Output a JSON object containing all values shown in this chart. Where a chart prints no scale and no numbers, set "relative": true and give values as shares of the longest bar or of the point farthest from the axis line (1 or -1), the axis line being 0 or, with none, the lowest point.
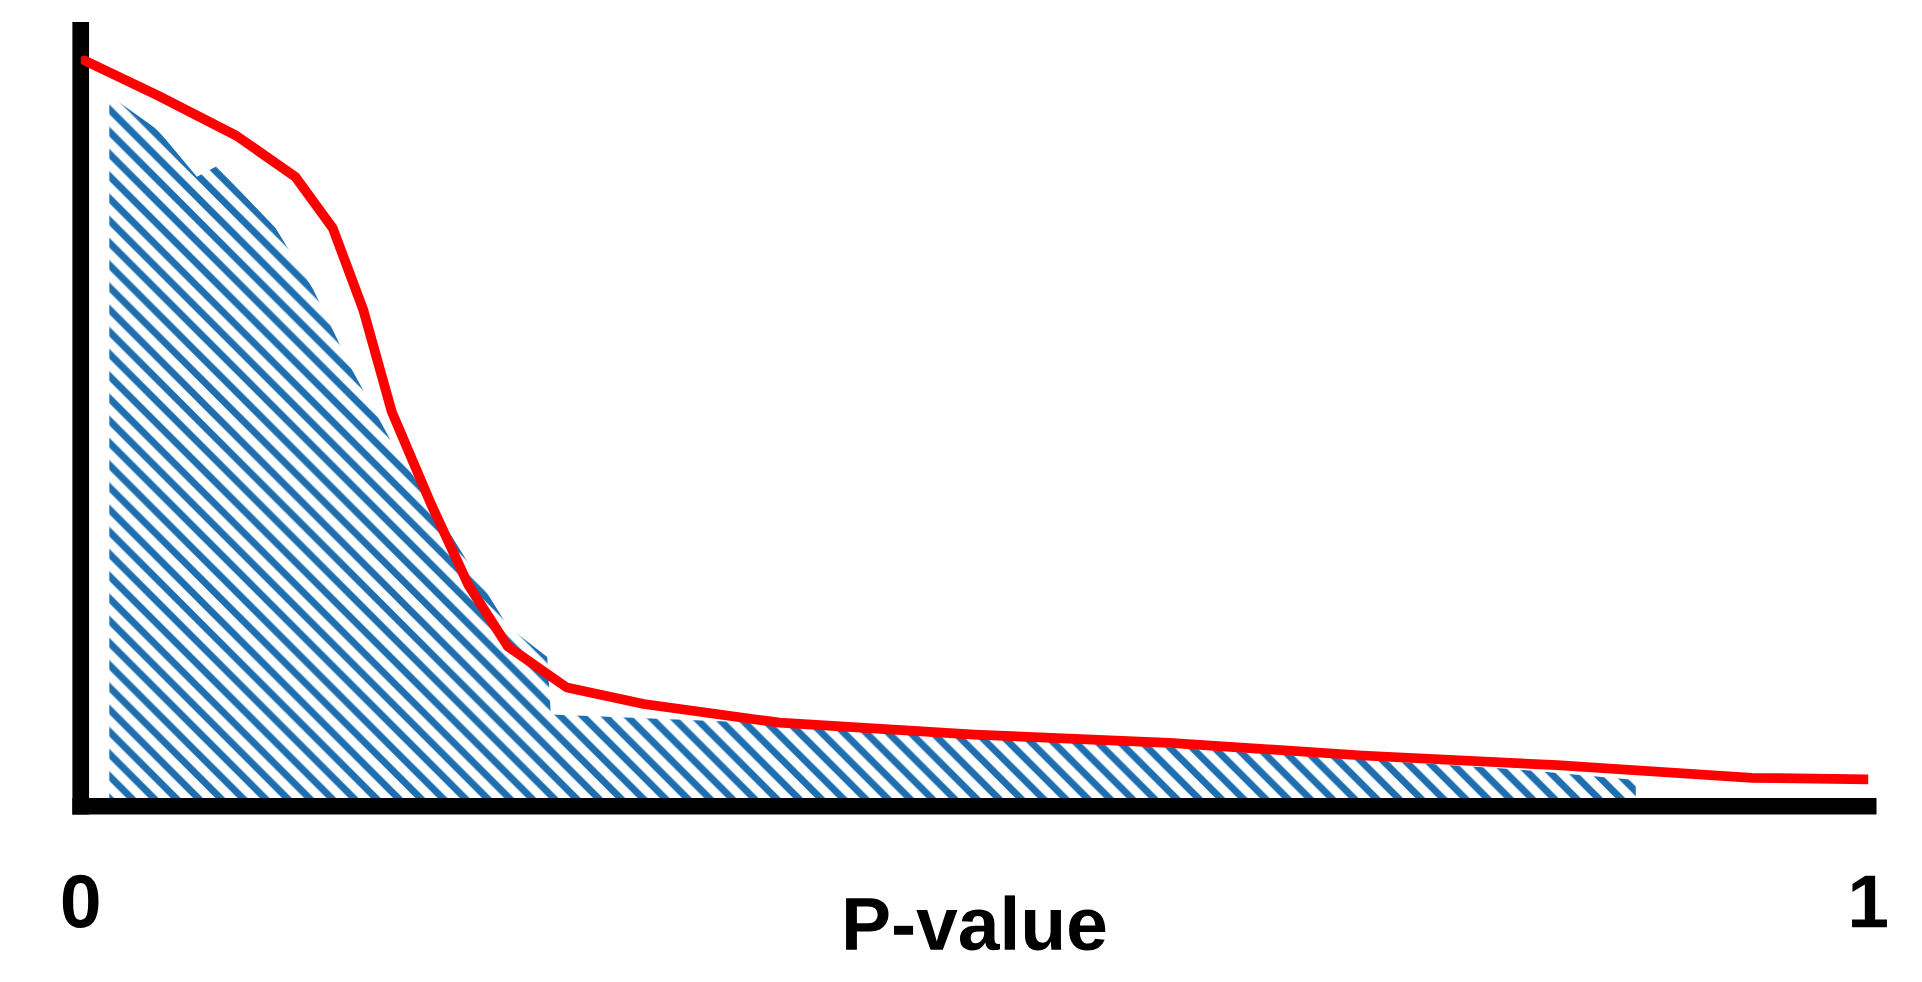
{
  "chart_data": {
    "type": "line",
    "xlabel": "P-value",
    "relative": true,
    "xlim": [
      0,
      1
    ],
    "xticks": [
      0,
      1
    ],
    "tick_labels": "x",
    "grid": false,
    "legend": false,
    "marker": "none",
    "line_style": "solid",
    "series": [
      {
        "type": "area",
        "color": "#1f6fb0",
        "x": [
          0.016,
          0.043,
          0.065,
          0.076,
          0.109,
          0.13,
          0.152,
          0.174,
          0.207,
          0.239,
          0.261,
          0.263,
          0.4,
          0.5,
          0.6,
          0.7,
          0.8,
          0.87
        ],
        "values": [
          0.953,
          0.907,
          0.844,
          0.858,
          0.775,
          0.693,
          0.584,
          0.488,
          0.364,
          0.241,
          0.2,
          0.123,
          0.11,
          0.095,
          0.08,
          0.065,
          0.05,
          0.035
        ]
      },
      {
        "color": "#ff0000",
        "x": [
          0.002,
          0.043,
          0.087,
          0.12,
          0.141,
          0.158,
          0.174,
          0.196,
          0.217,
          0.239,
          0.272,
          0.315,
          0.391,
          0.5,
          0.609,
          0.717,
          0.826,
          0.935,
          1.0
        ],
        "values": [
          1.0,
          0.953,
          0.899,
          0.844,
          0.775,
          0.666,
          0.529,
          0.405,
          0.296,
          0.214,
          0.159,
          0.137,
          0.112,
          0.096,
          0.085,
          0.068,
          0.055,
          0.038,
          0.036
        ]
      }
    ]
  }
}
